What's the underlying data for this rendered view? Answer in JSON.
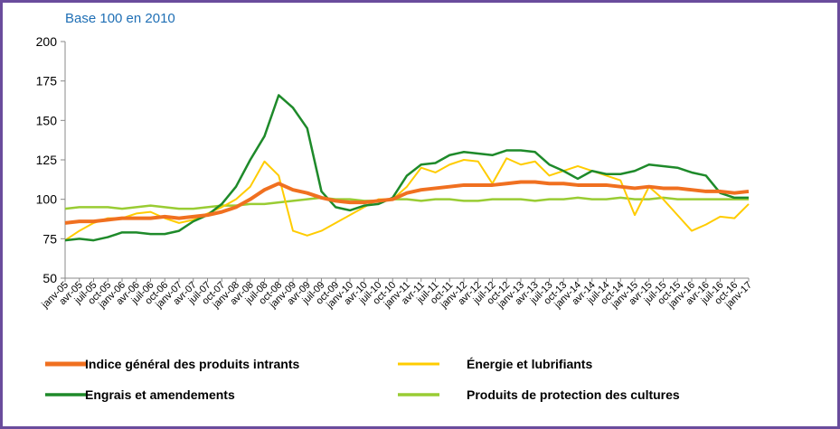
{
  "chart_data": {
    "type": "line",
    "subtitle": "Base 100 en 2010",
    "categories": [
      "janv-05",
      "avr-05",
      "juil-05",
      "oct-05",
      "janv-06",
      "avr-06",
      "juil-06",
      "oct-06",
      "janv-07",
      "avr-07",
      "juil-07",
      "oct-07",
      "janv-08",
      "avr-08",
      "juil-08",
      "oct-08",
      "janv-09",
      "avr-09",
      "juil-09",
      "oct-09",
      "janv-10",
      "avr-10",
      "juil-10",
      "oct-10",
      "janv-11",
      "avr-11",
      "juil-11",
      "oct-11",
      "janv-12",
      "avr-12",
      "juil-12",
      "oct-12",
      "janv-13",
      "avr-13",
      "juil-13",
      "oct-13",
      "janv-14",
      "avr-14",
      "juil-14",
      "oct-14",
      "janv-15",
      "avr-15",
      "juil-15",
      "oct-15",
      "janv-16",
      "avr-16",
      "juil-16",
      "oct-16",
      "janv-17"
    ],
    "series": [
      {
        "name": "Indice général des produits intrants",
        "color": "#f07020",
        "width": 4,
        "values": [
          85,
          86,
          86,
          87,
          88,
          88,
          88,
          89,
          88,
          89,
          90,
          92,
          95,
          100,
          106,
          110,
          106,
          104,
          101,
          99,
          98,
          98,
          99,
          100,
          104,
          106,
          107,
          108,
          109,
          109,
          109,
          110,
          111,
          111,
          110,
          110,
          109,
          109,
          109,
          108,
          107,
          108,
          107,
          107,
          106,
          105,
          105,
          104,
          105
        ]
      },
      {
        "name": "Énergie et lubrifiants",
        "color": "#ffcc00",
        "width": 2,
        "values": [
          74,
          80,
          85,
          88,
          88,
          91,
          92,
          88,
          85,
          87,
          91,
          95,
          100,
          108,
          124,
          115,
          80,
          77,
          80,
          85,
          90,
          95,
          100,
          100,
          108,
          120,
          117,
          122,
          125,
          124,
          110,
          126,
          122,
          124,
          115,
          118,
          121,
          118,
          115,
          112,
          90,
          108,
          100,
          90,
          80,
          84,
          89,
          88,
          97
        ]
      },
      {
        "name": "Engrais et amendements",
        "color": "#1e8a2a",
        "width": 2.5,
        "values": [
          74,
          75,
          74,
          76,
          79,
          79,
          78,
          78,
          80,
          86,
          90,
          97,
          108,
          125,
          140,
          166,
          158,
          145,
          105,
          95,
          93,
          96,
          97,
          101,
          115,
          122,
          123,
          128,
          130,
          129,
          128,
          131,
          131,
          130,
          122,
          118,
          113,
          118,
          116,
          116,
          118,
          122,
          121,
          120,
          117,
          115,
          104,
          101,
          101
        ]
      },
      {
        "name": "Produits de protection des cultures",
        "color": "#99cc33",
        "width": 2.5,
        "values": [
          94,
          95,
          95,
          95,
          94,
          95,
          96,
          95,
          94,
          94,
          95,
          96,
          96,
          97,
          97,
          98,
          99,
          100,
          101,
          100,
          100,
          99,
          99,
          100,
          100,
          99,
          100,
          100,
          99,
          99,
          100,
          100,
          100,
          99,
          100,
          100,
          101,
          100,
          100,
          101,
          100,
          100,
          101,
          100,
          100,
          100,
          100,
          100,
          100
        ]
      }
    ],
    "ylim": [
      50,
      200
    ],
    "yticks": [
      50,
      75,
      100,
      125,
      150,
      175,
      200
    ],
    "grid": false
  }
}
